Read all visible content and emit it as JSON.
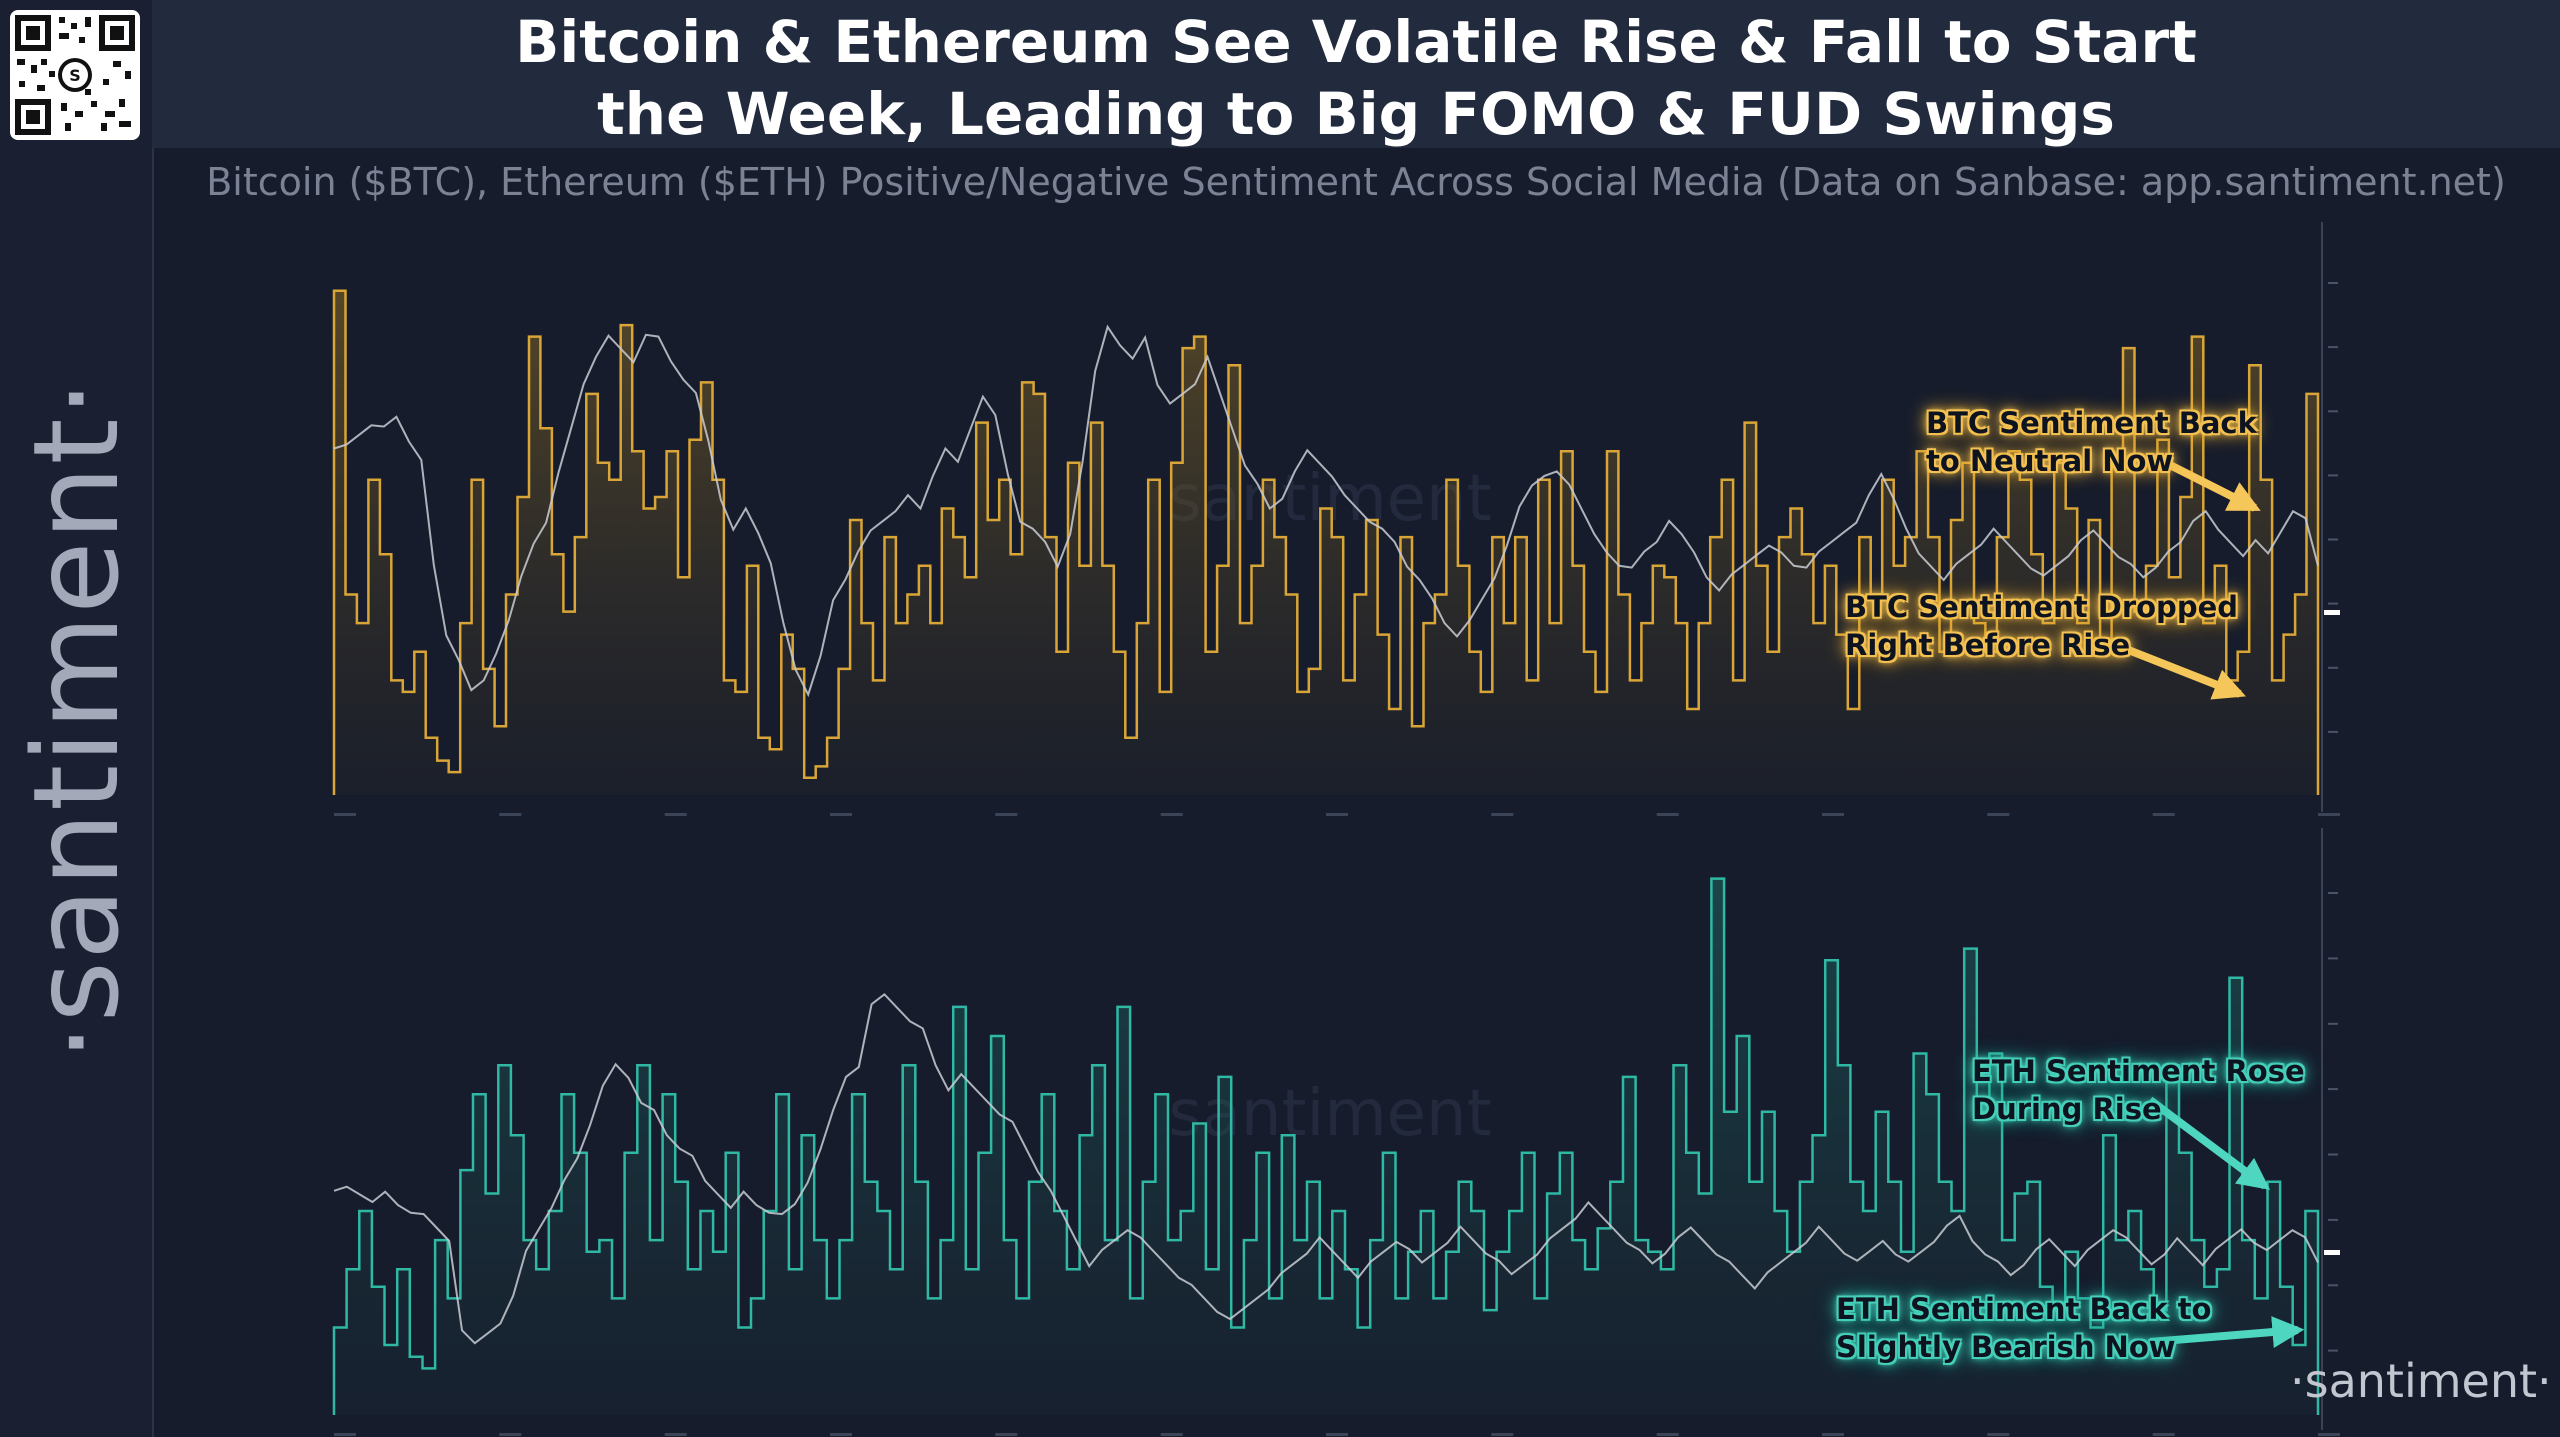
{
  "header": {
    "title_line1": "Bitcoin & Ethereum See Volatile Rise & Fall to Start",
    "title_line2": "the Week, Leading to Big FOMO & FUD Swings",
    "subtitle": "Bitcoin ($BTC), Ethereum ($ETH) Positive/Negative Sentiment Across Social Media (Data on Sanbase: app.santiment.net)"
  },
  "branding": {
    "sidebar_wordmark": "·santiment·",
    "footer_wordmark": "·santiment·",
    "watermark": "santiment"
  },
  "colors": {
    "background": "#161c2c",
    "btc_bars": "#d9a536",
    "eth_bars": "#2fb8a4",
    "price_line": "#c9ccd4",
    "btc_callout": "#f5c65a",
    "eth_callout": "#4fd6c0"
  },
  "annotations": {
    "btc_neutral_line1": "BTC Sentiment Back",
    "btc_neutral_line2": "to Neutral Now",
    "btc_dropped_line1": "BTC Sentiment Dropped",
    "btc_dropped_line2": "Right Before Rise",
    "eth_rose_line1": "ETH Sentiment Rose",
    "eth_rose_line2": "During Rise",
    "eth_bearish_line1": "ETH Sentiment Back to",
    "eth_bearish_line2": "Slightly Bearish Now"
  },
  "chart_data": [
    {
      "type": "bar",
      "asset": "BTC",
      "panel": "top",
      "ylim": [
        0,
        100
      ],
      "price_ylim": [
        0,
        100
      ],
      "sentiment": [
        88,
        35,
        30,
        55,
        42,
        20,
        18,
        25,
        10,
        6,
        4,
        30,
        55,
        22,
        12,
        35,
        52,
        80,
        64,
        42,
        32,
        45,
        70,
        58,
        55,
        82,
        60,
        50,
        52,
        60,
        38,
        62,
        72,
        55,
        20,
        18,
        40,
        10,
        8,
        28,
        22,
        3,
        5,
        10,
        22,
        48,
        30,
        20,
        45,
        30,
        35,
        40,
        30,
        50,
        45,
        38,
        65,
        48,
        55,
        42,
        72,
        70,
        45,
        25,
        58,
        40,
        65,
        40,
        25,
        10,
        30,
        55,
        18,
        58,
        78,
        80,
        25,
        40,
        75,
        30,
        40,
        55,
        45,
        35,
        18,
        22,
        50,
        45,
        20,
        35,
        48,
        28,
        15,
        45,
        12,
        30,
        35,
        55,
        40,
        25,
        18,
        45,
        30,
        45,
        20,
        55,
        30,
        60,
        40,
        25,
        18,
        60,
        35,
        20,
        30,
        40,
        38,
        30,
        15,
        30,
        45,
        55,
        20,
        65,
        40,
        25,
        45,
        50,
        42,
        30,
        40,
        28,
        15,
        45,
        35,
        55,
        40,
        45,
        60,
        45,
        25,
        48,
        58,
        30,
        25,
        45,
        60,
        55,
        42,
        30,
        58,
        50,
        30,
        48,
        25,
        58,
        78,
        32,
        40,
        62,
        38,
        52,
        80,
        30,
        40,
        20,
        25,
        75,
        55,
        20,
        28,
        35,
        70
      ],
      "price": [
        60,
        61,
        63,
        65,
        64,
        66,
        62,
        58,
        40,
        28,
        24,
        18,
        20,
        25,
        30,
        38,
        44,
        48,
        56,
        64,
        72,
        76,
        80,
        78,
        76,
        80,
        80,
        76,
        72,
        70,
        62,
        52,
        46,
        50,
        46,
        40,
        30,
        22,
        18,
        24,
        34,
        38,
        42,
        46,
        48,
        50,
        52,
        50,
        56,
        60,
        58,
        64,
        70,
        66,
        56,
        48,
        46,
        44,
        40,
        46,
        58,
        74,
        82,
        78,
        76,
        80,
        72,
        68,
        70,
        72,
        76,
        70,
        64,
        58,
        54,
        50,
        52,
        56,
        60,
        58,
        56,
        52,
        50,
        48,
        46,
        44,
        40,
        38,
        34,
        30,
        28,
        30,
        34,
        38,
        44,
        50,
        54,
        56,
        56,
        54,
        50,
        46,
        42,
        40,
        40,
        42,
        44,
        48,
        46,
        42,
        38,
        36,
        38,
        40,
        42,
        44,
        42,
        40,
        40,
        42,
        44,
        46,
        48,
        52,
        56,
        52,
        46,
        42,
        40,
        38,
        40,
        42,
        44,
        46,
        44,
        42,
        40,
        38,
        40,
        42,
        44,
        46,
        44,
        42,
        40,
        38,
        40,
        42,
        44,
        48,
        50,
        46,
        44,
        42,
        44,
        42,
        46,
        50,
        48,
        40
      ]
    },
    {
      "type": "bar",
      "asset": "ETH",
      "panel": "bottom",
      "ylim": [
        0,
        100
      ],
      "price_ylim": [
        0,
        100
      ],
      "sentiment": [
        15,
        25,
        35,
        22,
        12,
        25,
        10,
        8,
        30,
        20,
        42,
        55,
        38,
        60,
        48,
        30,
        25,
        35,
        55,
        45,
        28,
        30,
        20,
        45,
        60,
        30,
        55,
        40,
        25,
        35,
        28,
        45,
        15,
        20,
        35,
        55,
        25,
        48,
        30,
        20,
        30,
        55,
        40,
        35,
        25,
        60,
        40,
        20,
        30,
        70,
        25,
        45,
        65,
        30,
        20,
        40,
        55,
        35,
        25,
        48,
        60,
        30,
        70,
        20,
        40,
        55,
        30,
        35,
        50,
        25,
        58,
        15,
        30,
        45,
        20,
        48,
        30,
        40,
        20,
        35,
        25,
        15,
        30,
        45,
        20,
        28,
        35,
        20,
        28,
        40,
        35,
        18,
        28,
        35,
        45,
        20,
        38,
        45,
        30,
        25,
        32,
        40,
        58,
        30,
        28,
        25,
        60,
        45,
        38,
        92,
        52,
        65,
        40,
        52,
        35,
        28,
        40,
        48,
        78,
        60,
        40,
        35,
        52,
        40,
        28,
        62,
        55,
        40,
        35,
        80,
        52,
        62,
        30,
        38,
        40,
        22,
        18,
        28,
        20,
        15,
        48,
        30,
        35,
        25,
        18,
        60,
        45,
        30,
        22,
        25,
        75,
        30,
        20,
        40,
        22,
        12,
        35
      ],
      "price": [
        38,
        39,
        38,
        37,
        38,
        36,
        35,
        34,
        32,
        30,
        15,
        12,
        14,
        16,
        20,
        28,
        32,
        36,
        40,
        44,
        50,
        56,
        60,
        58,
        54,
        52,
        48,
        46,
        44,
        40,
        38,
        36,
        38,
        36,
        35,
        34,
        36,
        40,
        46,
        52,
        58,
        60,
        70,
        72,
        70,
        68,
        66,
        60,
        56,
        58,
        56,
        54,
        52,
        50,
        46,
        42,
        38,
        34,
        30,
        26,
        28,
        30,
        32,
        30,
        28,
        26,
        24,
        22,
        20,
        18,
        16,
        18,
        20,
        22,
        24,
        26,
        28,
        30,
        28,
        26,
        24,
        26,
        28,
        30,
        28,
        26,
        28,
        30,
        32,
        30,
        28,
        26,
        24,
        26,
        28,
        30,
        32,
        34,
        36,
        34,
        32,
        30,
        28,
        26,
        28,
        30,
        32,
        30,
        28,
        26,
        24,
        22,
        24,
        26,
        28,
        30,
        32,
        30,
        28,
        26,
        28,
        30,
        28,
        26,
        28,
        30,
        32,
        34,
        30,
        28,
        26,
        24,
        26,
        28,
        30,
        28,
        26,
        28,
        30,
        32,
        30,
        28,
        26,
        28,
        30,
        28,
        26,
        28,
        30,
        32,
        30,
        28,
        30,
        32,
        30,
        26
      ]
    }
  ]
}
